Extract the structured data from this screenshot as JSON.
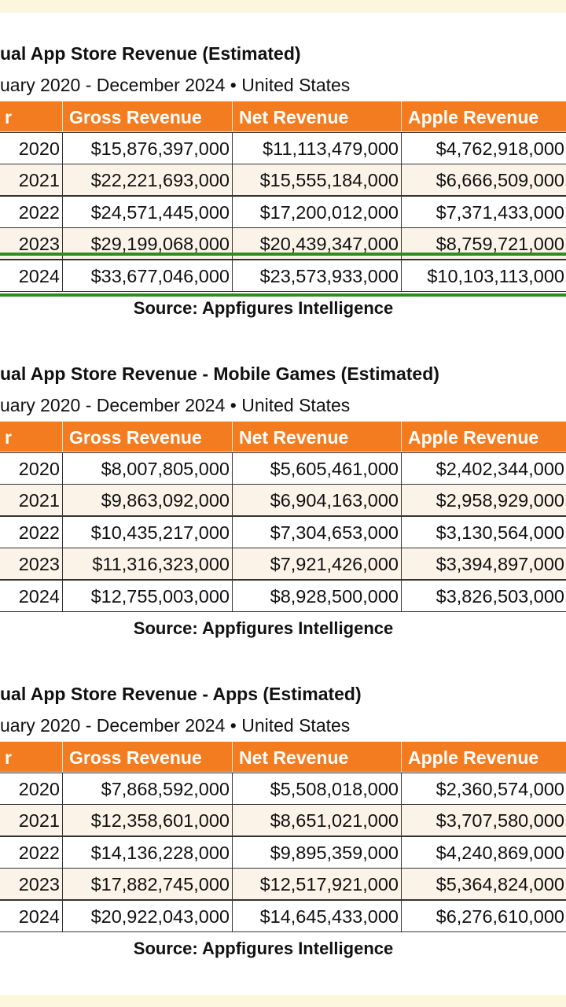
{
  "tables": [
    {
      "title": "ual App Store Revenue (Estimated)",
      "subtitle": "uary 2020 - December 2024 • United States",
      "columns": [
        "r",
        "Gross Revenue",
        "Net Revenue",
        "Apple Revenue"
      ],
      "rows": [
        [
          "2020",
          "$15,876,397,000",
          "$11,113,479,000",
          "$4,762,918,000"
        ],
        [
          "2021",
          "$22,221,693,000",
          "$15,555,184,000",
          "$6,666,509,000"
        ],
        [
          "2022",
          "$24,571,445,000",
          "$17,200,012,000",
          "$7,371,433,000"
        ],
        [
          "2023",
          "$29,199,068,000",
          "$20,439,347,000",
          "$8,759,721,000"
        ],
        [
          "2024",
          "$33,677,046,000",
          "$23,573,933,000",
          "$10,103,113,000"
        ]
      ],
      "source": "Source: Appfigures Intelligence"
    },
    {
      "title": "ual App Store Revenue - Mobile Games (Estimated)",
      "subtitle": "uary 2020 - December 2024 • United States",
      "columns": [
        "r",
        "Gross Revenue",
        "Net Revenue",
        "Apple Revenue"
      ],
      "rows": [
        [
          "2020",
          "$8,007,805,000",
          "$5,605,461,000",
          "$2,402,344,000"
        ],
        [
          "2021",
          "$9,863,092,000",
          "$6,904,163,000",
          "$2,958,929,000"
        ],
        [
          "2022",
          "$10,435,217,000",
          "$7,304,653,000",
          "$3,130,564,000"
        ],
        [
          "2023",
          "$11,316,323,000",
          "$7,921,426,000",
          "$3,394,897,000"
        ],
        [
          "2024",
          "$12,755,003,000",
          "$8,928,500,000",
          "$3,826,503,000"
        ]
      ],
      "source": "Source: Appfigures Intelligence"
    },
    {
      "title": "ual App Store Revenue - Apps (Estimated)",
      "subtitle": "uary 2020 - December 2024 • United States",
      "columns": [
        "r",
        "Gross Revenue",
        "Net Revenue",
        "Apple Revenue"
      ],
      "rows": [
        [
          "2020",
          "$7,868,592,000",
          "$5,508,018,000",
          "$2,360,574,000"
        ],
        [
          "2021",
          "$12,358,601,000",
          "$8,651,021,000",
          "$3,707,580,000"
        ],
        [
          "2022",
          "$14,136,228,000",
          "$9,895,359,000",
          "$4,240,869,000"
        ],
        [
          "2023",
          "$17,882,745,000",
          "$12,517,921,000",
          "$5,364,824,000"
        ],
        [
          "2024",
          "$20,922,043,000",
          "$14,645,433,000",
          "$6,276,610,000"
        ]
      ],
      "source": "Source: Appfigures Intelligence"
    }
  ]
}
